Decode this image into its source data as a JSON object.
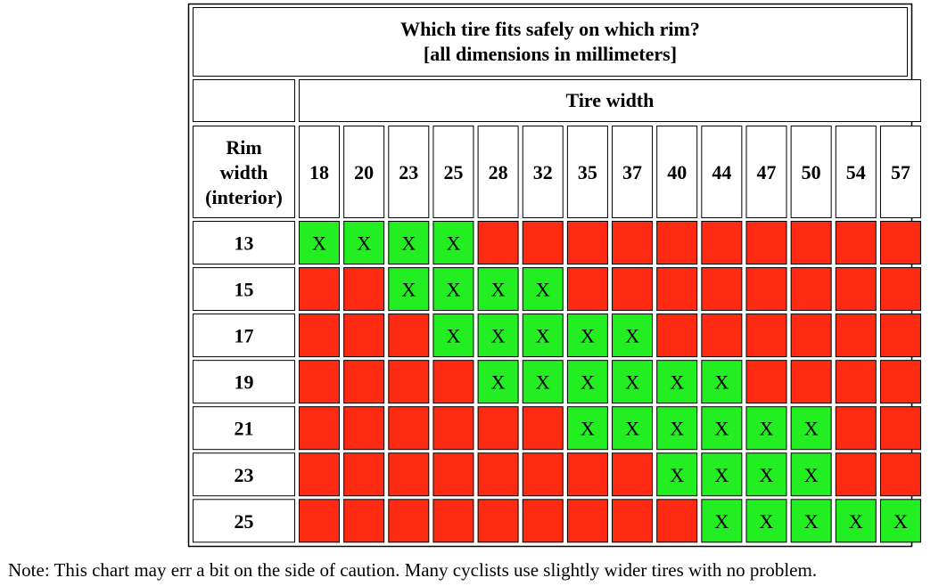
{
  "chart_data": {
    "type": "table",
    "title": "Which tire fits safely on which rim?",
    "subtitle": "[all dimensions in millimeters]",
    "column_header": "Tire width",
    "row_header_lines": [
      "Rim",
      "width",
      "(interior)"
    ],
    "tire_widths": [
      "18",
      "20",
      "23",
      "25",
      "28",
      "32",
      "35",
      "37",
      "40",
      "44",
      "47",
      "50",
      "54",
      "57"
    ],
    "rim_widths": [
      "13",
      "15",
      "17",
      "19",
      "21",
      "23",
      "25"
    ],
    "fits": [
      [
        1,
        1,
        1,
        1,
        0,
        0,
        0,
        0,
        0,
        0,
        0,
        0,
        0,
        0
      ],
      [
        0,
        0,
        1,
        1,
        1,
        1,
        0,
        0,
        0,
        0,
        0,
        0,
        0,
        0
      ],
      [
        0,
        0,
        0,
        1,
        1,
        1,
        1,
        1,
        0,
        0,
        0,
        0,
        0,
        0
      ],
      [
        0,
        0,
        0,
        0,
        1,
        1,
        1,
        1,
        1,
        1,
        0,
        0,
        0,
        0
      ],
      [
        0,
        0,
        0,
        0,
        0,
        0,
        1,
        1,
        1,
        1,
        1,
        1,
        0,
        0
      ],
      [
        0,
        0,
        0,
        0,
        0,
        0,
        0,
        0,
        1,
        1,
        1,
        1,
        0,
        0
      ],
      [
        0,
        0,
        0,
        0,
        0,
        0,
        0,
        0,
        0,
        1,
        1,
        1,
        1,
        1
      ]
    ],
    "mark": "X",
    "colors": {
      "fits": "#22ee22",
      "no_fit": "#ff2a12",
      "border": "#000000",
      "header_bg": "#ffffff"
    }
  },
  "note": "Note: This chart may err a bit on the side of caution. Many cyclists use slightly wider tires with no problem."
}
